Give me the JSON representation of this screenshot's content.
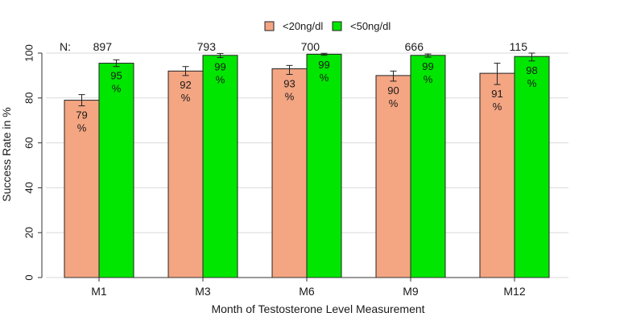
{
  "chart_data": {
    "type": "bar",
    "title": "",
    "xlabel": "Month of Testosterone Level Measurement",
    "ylabel": "Success Rate in %",
    "ylim": [
      0,
      100
    ],
    "yticks": [
      0,
      20,
      40,
      60,
      80,
      100
    ],
    "grid": "horizontal",
    "legend_position": "top",
    "categories": [
      "M1",
      "M3",
      "M6",
      "M9",
      "M12"
    ],
    "n_prefix": "N:",
    "n_values": [
      "897",
      "793",
      "700",
      "666",
      "115"
    ],
    "series": [
      {
        "name": "<20ng/dl",
        "color": "#F4A582",
        "values": [
          79,
          92,
          93,
          90,
          91
        ],
        "labels": [
          "79",
          "92",
          "93",
          "90",
          "91"
        ],
        "error": [
          [
            76.5,
            81.5
          ],
          [
            90,
            94
          ],
          [
            90.5,
            94.5
          ],
          [
            87.5,
            92
          ],
          [
            86,
            95.5
          ]
        ]
      },
      {
        "name": "<50ng/dl",
        "color": "#00E600",
        "values": [
          95.5,
          99,
          99.5,
          99,
          98.5
        ],
        "labels": [
          "95",
          "99",
          "99",
          "99",
          "98"
        ],
        "error": [
          [
            94,
            97
          ],
          [
            98,
            99.8
          ],
          [
            99,
            99.9
          ],
          [
            98.2,
            99.6
          ],
          [
            96.5,
            100
          ]
        ]
      }
    ],
    "unit_label": "%"
  }
}
